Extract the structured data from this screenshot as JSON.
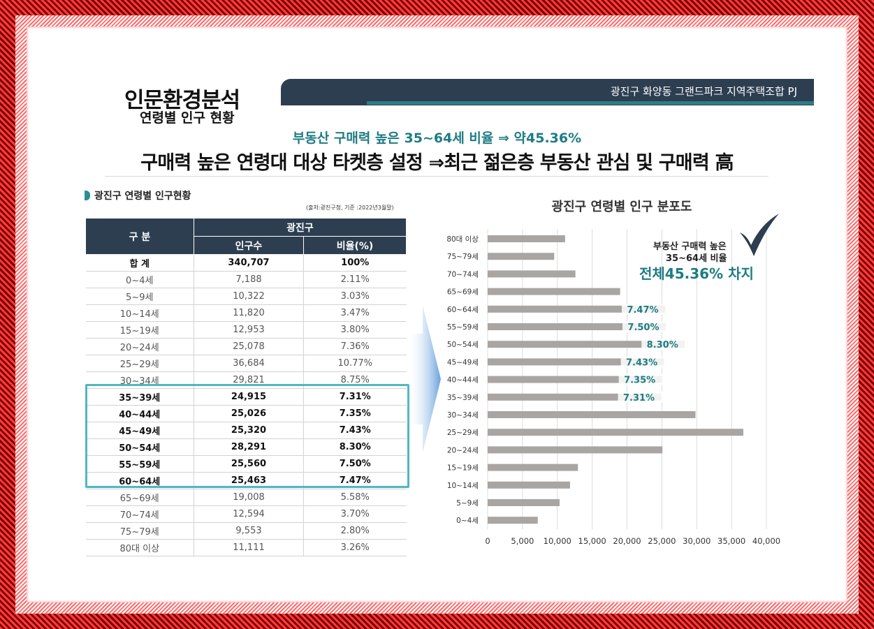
{
  "colors": {
    "header": "#2c3e50",
    "accent": "#1d7c84",
    "bar": "#a8a5a3",
    "highlight_border": "#4eb7c4"
  },
  "title": {
    "main": "인문환경분석",
    "sub": "연령별 인구 현황"
  },
  "project": "광진구 화양동 그랜드파크 지역주택조합 PJ",
  "highlight": "부동산 구매력 높은 35~64세 비율 ⇒ 약45.36%",
  "headline": "구매력 높은 연령대 대상 타켓층 설정 ⇒최근 젊은층 부동산 관심 및 구매력 高",
  "table": {
    "label": "광진구 연령별 인구현황",
    "source": "(출처:광진구청, 기준 :2022년3월말)",
    "header_group": "구 분",
    "header_region": "광진구",
    "col_population": "인구수",
    "col_ratio": "비율(%)",
    "rows": [
      {
        "group": "합 계",
        "population": "340,707",
        "ratio": "100%"
      },
      {
        "group": "0~4세",
        "population": "7,188",
        "ratio": "2.11%"
      },
      {
        "group": "5~9세",
        "population": "10,322",
        "ratio": "3.03%"
      },
      {
        "group": "10~14세",
        "population": "11,820",
        "ratio": "3.47%"
      },
      {
        "group": "15~19세",
        "population": "12,953",
        "ratio": "3.80%"
      },
      {
        "group": "20~24세",
        "population": "25,078",
        "ratio": "7.36%"
      },
      {
        "group": "25~29세",
        "population": "36,684",
        "ratio": "10.77%"
      },
      {
        "group": "30~34세",
        "population": "29,821",
        "ratio": "8.75%"
      },
      {
        "group": "35~39세",
        "population": "24,915",
        "ratio": "7.31%"
      },
      {
        "group": "40~44세",
        "population": "25,026",
        "ratio": "7.35%"
      },
      {
        "group": "45~49세",
        "population": "25,320",
        "ratio": "7.43%"
      },
      {
        "group": "50~54세",
        "population": "28,291",
        "ratio": "8.30%"
      },
      {
        "group": "55~59세",
        "population": "25,560",
        "ratio": "7.50%"
      },
      {
        "group": "60~64세",
        "population": "25,463",
        "ratio": "7.47%"
      },
      {
        "group": "65~69세",
        "population": "19,008",
        "ratio": "5.58%"
      },
      {
        "group": "70~74세",
        "population": "12,594",
        "ratio": "3.70%"
      },
      {
        "group": "75~79세",
        "population": "9,553",
        "ratio": "2.80%"
      },
      {
        "group": "80대 이상",
        "population": "11,111",
        "ratio": "3.26%"
      }
    ]
  },
  "annotation": {
    "line1": "부동산 구매력 높은",
    "line2": "35~64세 비율",
    "line3": "전체45.36% 차지"
  },
  "chart_data": {
    "type": "bar",
    "orientation": "horizontal",
    "title": "광진구 연령별 인구 분포도",
    "categories": [
      "80대 이상",
      "75~79세",
      "70~74세",
      "65~69세",
      "60~64세",
      "55~59세",
      "50~54세",
      "45~49세",
      "40~44세",
      "35~39세",
      "30~34세",
      "25~29세",
      "20~24세",
      "15~19세",
      "10~14세",
      "5~9세",
      "0~4세"
    ],
    "values": [
      11111,
      9553,
      12594,
      19008,
      25463,
      25560,
      28291,
      25320,
      25026,
      24915,
      29821,
      36684,
      25078,
      12953,
      11820,
      10322,
      7188
    ],
    "data_labels": [
      "",
      "",
      "",
      "",
      "7.47%",
      "7.50%",
      "8.30%",
      "7.43%",
      "7.35%",
      "7.31%",
      "",
      "",
      "",
      "",
      "",
      "",
      ""
    ],
    "xlim": [
      0,
      40000
    ],
    "xticks": [
      "0",
      "5,000",
      "10,000",
      "15,000",
      "20,000",
      "25,000",
      "30,000",
      "35,000",
      "40,000"
    ],
    "grid": "vertical",
    "legend": "none"
  }
}
